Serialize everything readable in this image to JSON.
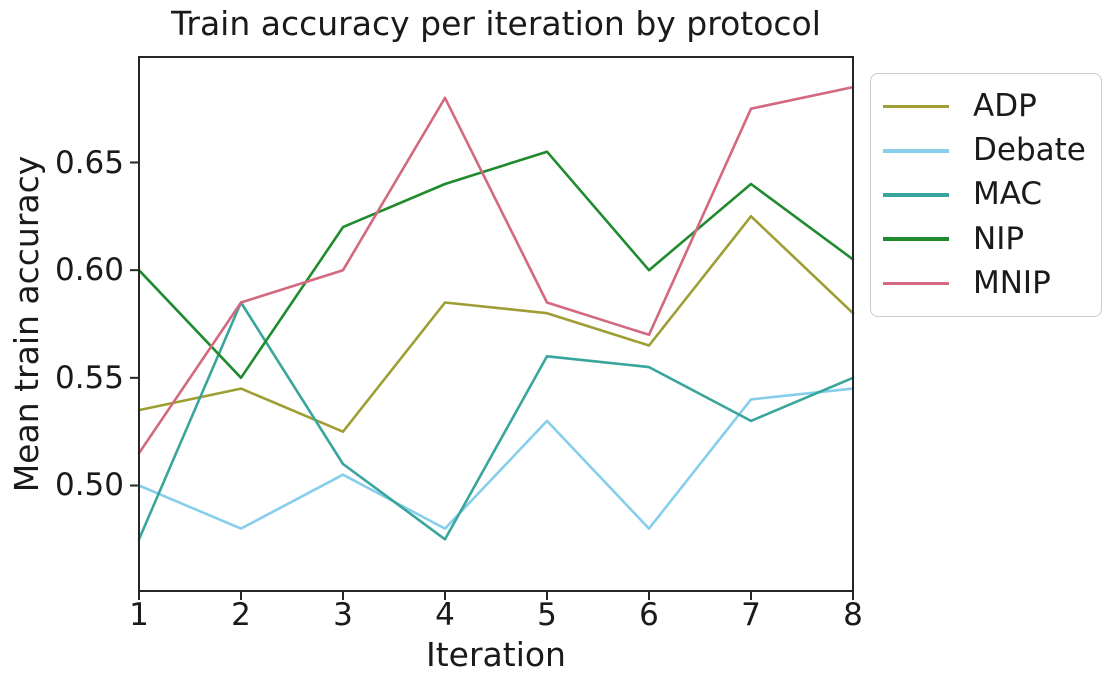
{
  "figure": {
    "background": "#ffffff",
    "text_color": "#1a1a1a",
    "frame_color": "#262626",
    "legend_border_color": "#cbcbcb"
  },
  "chart_data": {
    "type": "line",
    "title": "Train accuracy per iteration by protocol",
    "xlabel": "Iteration",
    "ylabel": "Mean train accuracy",
    "x": [
      1,
      2,
      3,
      4,
      5,
      6,
      7,
      8
    ],
    "xlim": [
      1,
      8
    ],
    "ylim": [
      0.451,
      0.699
    ],
    "xtick_labels": [
      "1",
      "2",
      "3",
      "4",
      "5",
      "6",
      "7",
      "8"
    ],
    "yticks": [
      0.5,
      0.55,
      0.6,
      0.65
    ],
    "ytick_labels": [
      "0.50",
      "0.55",
      "0.60",
      "0.65"
    ],
    "grid": false,
    "legend_position": "outside-right",
    "series": [
      {
        "name": "ADP",
        "color": "#9e9e35",
        "values": [
          0.535,
          0.545,
          0.525,
          0.585,
          0.58,
          0.565,
          0.625,
          0.58
        ]
      },
      {
        "name": "Debate",
        "color": "#87ceeb",
        "values": [
          0.5,
          0.48,
          0.505,
          0.48,
          0.53,
          0.48,
          0.54,
          0.545
        ]
      },
      {
        "name": "MAC",
        "color": "#39a59c",
        "values": [
          0.475,
          0.585,
          0.51,
          0.475,
          0.56,
          0.555,
          0.53,
          0.55
        ]
      },
      {
        "name": "NIP",
        "color": "#208b2e",
        "values": [
          0.6,
          0.55,
          0.62,
          0.64,
          0.655,
          0.6,
          0.64,
          0.605
        ]
      },
      {
        "name": "MNIP",
        "color": "#d2697e",
        "values": [
          0.515,
          0.585,
          0.6,
          0.68,
          0.585,
          0.57,
          0.675,
          0.685
        ]
      }
    ]
  }
}
